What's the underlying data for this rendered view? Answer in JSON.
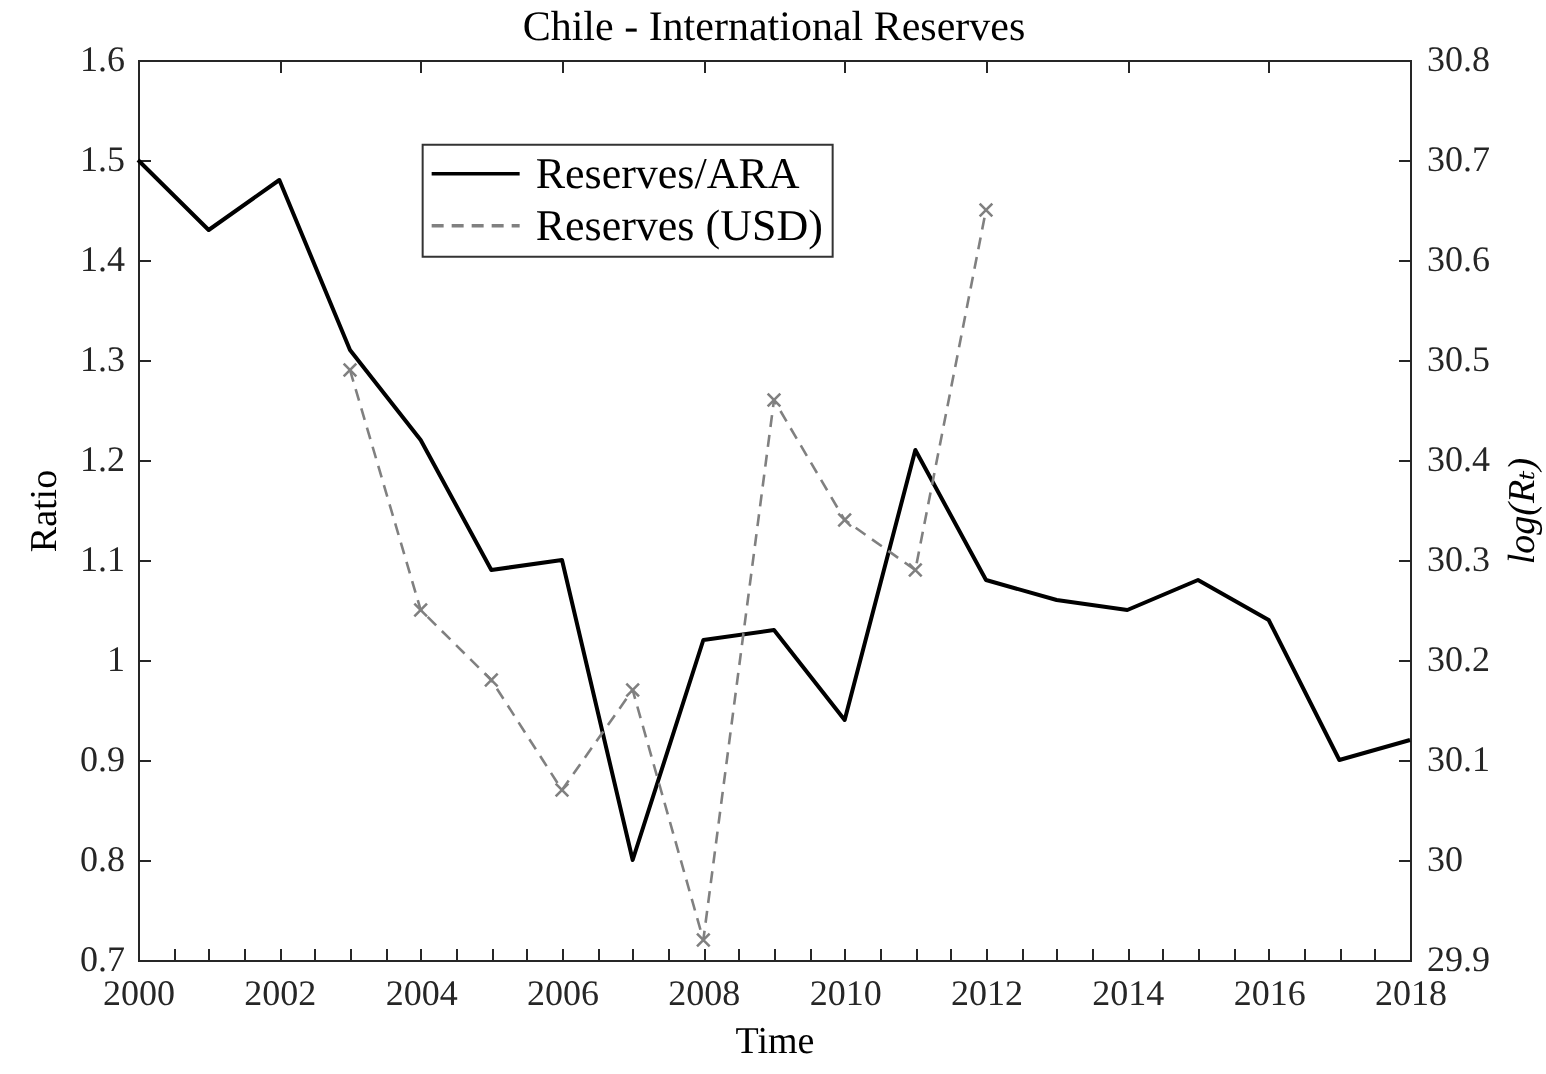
{
  "chart_data": {
    "type": "line",
    "title": "Chile - International Reserves",
    "xlabel": "Time",
    "ylabel": "Ratio",
    "y2label": "log(Rₜ)",
    "x": [
      2000,
      2001,
      2002,
      2003,
      2004,
      2005,
      2006,
      2007,
      2008,
      2009,
      2010,
      2011,
      2012,
      2013,
      2014,
      2015,
      2016,
      2017,
      2018
    ],
    "series": [
      {
        "name": "Reserves/ARA",
        "color": "#000000",
        "line_style": "solid",
        "values": [
          1.5,
          1.43,
          1.48,
          1.31,
          1.22,
          1.09,
          1.1,
          0.8,
          1.02,
          1.03,
          0.94,
          1.21,
          1.08,
          1.06,
          1.05,
          1.08,
          1.04,
          0.9,
          0.92
        ]
      },
      {
        "name": "Reserves (USD)",
        "color": "#808080",
        "axis": "y2",
        "line_style": "dashed",
        "marker": "cross",
        "x": [
          2003,
          2004,
          2005,
          2006,
          2007,
          2008,
          2009,
          2010,
          2011,
          2012
        ],
        "values": [
          30.49,
          30.25,
          30.18,
          30.07,
          30.17,
          29.92,
          30.46,
          30.34,
          30.29,
          30.65
        ]
      }
    ],
    "xlim": [
      2000,
      2018
    ],
    "xticks": [
      2000,
      {
        "value": 2000.5,
        "label": null
      },
      {
        "value": 2001,
        "label": null
      },
      {
        "value": 2001.5,
        "label": null
      },
      2002,
      {
        "value": 2002.5,
        "label": null
      },
      {
        "value": 2003,
        "label": null
      },
      {
        "value": 2003.5,
        "label": null
      },
      2004,
      {
        "value": 2004.5,
        "label": null
      },
      {
        "value": 2005,
        "label": null
      },
      {
        "value": 2005.5,
        "label": null
      },
      2006,
      {
        "value": 2006.5,
        "label": null
      },
      {
        "value": 2007,
        "label": null
      },
      {
        "value": 2007.5,
        "label": null
      },
      2008,
      {
        "value": 2008.5,
        "label": null
      },
      {
        "value": 2009,
        "label": null
      },
      {
        "value": 2009.5,
        "label": null
      },
      2010,
      {
        "value": 2010.5,
        "label": null
      },
      {
        "value": 2011,
        "label": null
      },
      {
        "value": 2011.5,
        "label": null
      },
      2012,
      {
        "value": 2012.5,
        "label": null
      },
      {
        "value": 2013,
        "label": null
      },
      {
        "value": 2013.5,
        "label": null
      },
      2014,
      {
        "value": 2014.5,
        "label": null
      },
      {
        "value": 2015,
        "label": null
      },
      {
        "value": 2015.5,
        "label": null
      },
      2016,
      {
        "value": 2016.5,
        "label": null
      },
      {
        "value": 2017,
        "label": null
      },
      {
        "value": 2017.5,
        "label": null
      },
      2018
    ],
    "ylim": [
      0.7,
      1.6
    ],
    "yticks": [
      0.7,
      0.8,
      0.9,
      1,
      1.1,
      1.2,
      1.3,
      1.4,
      1.5,
      1.6
    ],
    "y2lim": [
      29.9,
      30.8
    ],
    "y2ticks": [
      29.9,
      30,
      30.1,
      30.2,
      30.3,
      30.4,
      30.5,
      30.6,
      30.7,
      30.8
    ],
    "legend": "top left",
    "grid": false
  }
}
